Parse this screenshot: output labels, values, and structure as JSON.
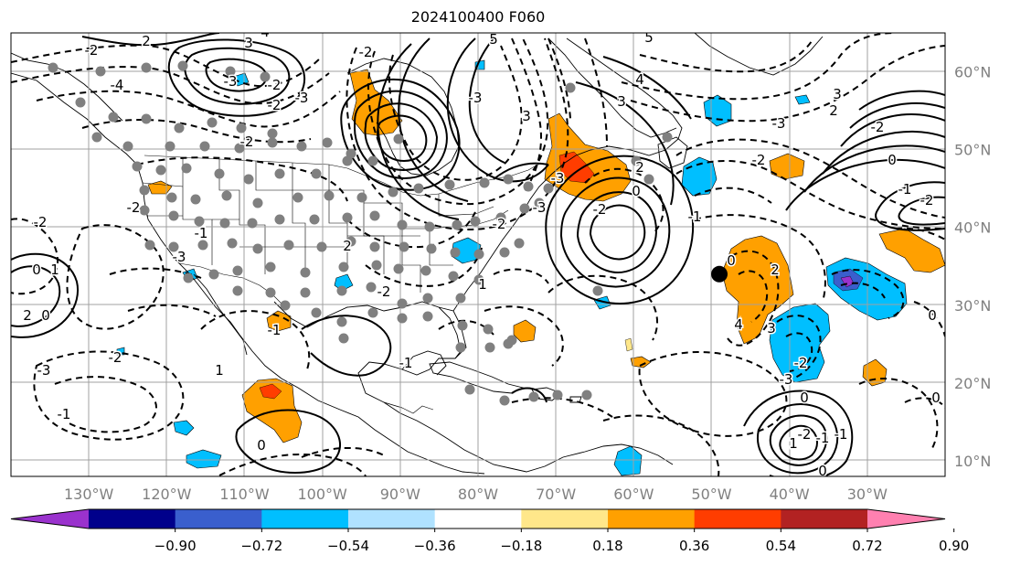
{
  "title": "2024100400 F060",
  "map": {
    "lon_range": [
      -140,
      -20
    ],
    "lat_range": [
      8,
      65
    ],
    "lon_labels": [
      {
        "lon": -130,
        "text": "130°W"
      },
      {
        "lon": -120,
        "text": "120°W"
      },
      {
        "lon": -110,
        "text": "110°W"
      },
      {
        "lon": -100,
        "text": "100°W"
      },
      {
        "lon": -90,
        "text": "90°W"
      },
      {
        "lon": -80,
        "text": "80°W"
      },
      {
        "lon": -70,
        "text": "70°W"
      },
      {
        "lon": -60,
        "text": "60°W"
      },
      {
        "lon": -50,
        "text": "50°W"
      },
      {
        "lon": -40,
        "text": "40°W"
      },
      {
        "lon": -30,
        "text": "30°W"
      }
    ],
    "lat_labels": [
      {
        "lat": 60,
        "text": "60°N"
      },
      {
        "lat": 50,
        "text": "50°N"
      },
      {
        "lat": 40,
        "text": "40°N"
      },
      {
        "lat": 30,
        "text": "30°N"
      },
      {
        "lat": 20,
        "text": "20°N"
      },
      {
        "lat": 10,
        "text": "10°N"
      }
    ],
    "grid": true,
    "label_color": "#808080"
  },
  "colorbar": {
    "ticks": [
      "−0.90",
      "−0.72",
      "−0.54",
      "−0.36",
      "−0.18",
      "0.18",
      "0.36",
      "0.54",
      "0.72",
      "0.90"
    ],
    "colors": [
      "#9a32cd",
      "#00008b",
      "#3a5fcd",
      "#00bfff",
      "#b0e2ff",
      "#ffffff",
      "#ffe78a",
      "#ffa000",
      "#ff3d00",
      "#b22222",
      "#ff80b0"
    ],
    "extend": "both"
  },
  "contour_labels": [
    "-2",
    "-3",
    "-4",
    "-2",
    "-1",
    "0",
    "2",
    "3",
    "4",
    "5",
    "-2",
    "-3",
    "-2",
    "0",
    "1",
    "2",
    "-1",
    "-3",
    "-2",
    "-2",
    "-3",
    "-2",
    "-3",
    "3",
    "2",
    "1",
    "-1",
    "-2",
    "0",
    "1",
    "-1",
    "-2",
    "-3",
    "-2",
    "-3",
    "-2",
    "0",
    "2",
    "3",
    "4",
    "5",
    "-3",
    "-2",
    "-1",
    "0",
    "2",
    "3",
    "4",
    "-2",
    "-3",
    "1",
    "-2",
    "-1",
    "-1",
    "-2",
    "0",
    "-1",
    "-2",
    "0",
    "0",
    "0",
    "0",
    "2",
    "3"
  ],
  "station_count": 120,
  "marked_point": {
    "lon": -49,
    "lat": 34,
    "color": "#000000"
  }
}
